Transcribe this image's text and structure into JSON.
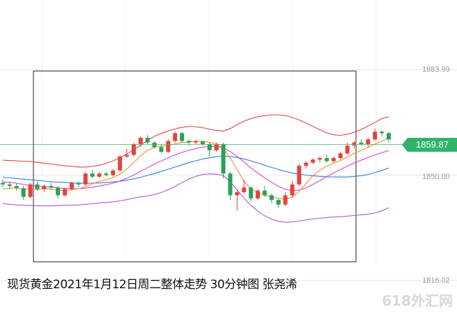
{
  "chart_data": {
    "type": "candlestick",
    "y_ticks": [
      "1883.99",
      "1850.00",
      "1816.02"
    ],
    "y_tick_values": [
      1883.99,
      1850.0,
      1816.02
    ],
    "current_price": "1859.87",
    "current_price_value": 1859.87,
    "ylim": [
      1816.02,
      1883.99
    ],
    "grid": true,
    "candles": [
      [
        1847.5,
        1848.5,
        1846.0,
        1847.0
      ],
      [
        1847.0,
        1848.0,
        1845.5,
        1846.5
      ],
      [
        1846.5,
        1847.5,
        1845.0,
        1845.8
      ],
      [
        1845.8,
        1846.5,
        1842.0,
        1843.0
      ],
      [
        1843.0,
        1847.5,
        1842.5,
        1847.0
      ],
      [
        1847.0,
        1848.0,
        1845.0,
        1845.5
      ],
      [
        1845.5,
        1847.0,
        1844.5,
        1846.5
      ],
      [
        1846.5,
        1847.5,
        1845.5,
        1846.0
      ],
      [
        1846.0,
        1846.5,
        1842.5,
        1843.5
      ],
      [
        1843.5,
        1846.0,
        1843.0,
        1845.5
      ],
      [
        1845.5,
        1848.0,
        1845.0,
        1847.5
      ],
      [
        1847.5,
        1848.0,
        1846.0,
        1847.0
      ],
      [
        1847.0,
        1851.0,
        1846.5,
        1850.5
      ],
      [
        1850.5,
        1851.5,
        1849.0,
        1849.5
      ],
      [
        1849.5,
        1851.0,
        1849.0,
        1850.5
      ],
      [
        1850.5,
        1851.0,
        1849.5,
        1850.0
      ],
      [
        1850.0,
        1852.0,
        1849.5,
        1851.5
      ],
      [
        1851.5,
        1856.5,
        1851.0,
        1856.0
      ],
      [
        1856.0,
        1858.5,
        1855.5,
        1856.5
      ],
      [
        1856.5,
        1860.5,
        1856.0,
        1860.0
      ],
      [
        1860.0,
        1862.5,
        1859.0,
        1862.0
      ],
      [
        1862.0,
        1863.0,
        1860.0,
        1860.5
      ],
      [
        1860.5,
        1861.0,
        1858.5,
        1859.0
      ],
      [
        1859.0,
        1860.0,
        1857.0,
        1857.5
      ],
      [
        1857.5,
        1861.5,
        1857.0,
        1861.0
      ],
      [
        1861.0,
        1864.0,
        1860.5,
        1863.5
      ],
      [
        1863.5,
        1864.0,
        1860.5,
        1861.0
      ],
      [
        1861.0,
        1861.5,
        1859.5,
        1860.5
      ],
      [
        1860.5,
        1861.5,
        1860.0,
        1860.8
      ],
      [
        1860.8,
        1861.0,
        1859.5,
        1860.0
      ],
      [
        1860.0,
        1860.5,
        1856.0,
        1858.0
      ],
      [
        1858.0,
        1860.5,
        1857.5,
        1860.0
      ],
      [
        1860.0,
        1860.5,
        1849.0,
        1850.5
      ],
      [
        1850.5,
        1851.0,
        1842.0,
        1843.5
      ],
      [
        1843.5,
        1845.5,
        1838.5,
        1844.5
      ],
      [
        1844.5,
        1848.5,
        1844.0,
        1846.0
      ],
      [
        1846.0,
        1846.5,
        1841.5,
        1842.5
      ],
      [
        1842.5,
        1845.5,
        1842.0,
        1845.0
      ],
      [
        1845.0,
        1846.5,
        1843.0,
        1843.5
      ],
      [
        1843.5,
        1844.0,
        1841.0,
        1842.0
      ],
      [
        1842.0,
        1842.5,
        1839.5,
        1840.5
      ],
      [
        1840.5,
        1844.5,
        1840.0,
        1843.5
      ],
      [
        1843.5,
        1848.0,
        1843.0,
        1847.0
      ],
      [
        1847.0,
        1853.5,
        1846.5,
        1853.0
      ],
      [
        1853.0,
        1854.5,
        1852.0,
        1854.0
      ],
      [
        1854.0,
        1855.5,
        1853.5,
        1855.0
      ],
      [
        1855.0,
        1856.0,
        1854.0,
        1855.5
      ],
      [
        1855.5,
        1856.5,
        1854.0,
        1854.5
      ],
      [
        1854.5,
        1856.0,
        1854.0,
        1855.5
      ],
      [
        1855.5,
        1857.5,
        1855.0,
        1857.0
      ],
      [
        1857.0,
        1860.5,
        1856.5,
        1859.5
      ],
      [
        1859.5,
        1861.0,
        1858.5,
        1860.5
      ],
      [
        1860.5,
        1861.5,
        1859.5,
        1860.0
      ],
      [
        1860.0,
        1862.0,
        1859.0,
        1861.5
      ],
      [
        1861.5,
        1865.0,
        1861.0,
        1864.0
      ],
      [
        1864.0,
        1864.5,
        1862.5,
        1863.5
      ],
      [
        1863.5,
        1864.0,
        1860.5,
        1861.5
      ]
    ],
    "ma_orange": [
      1845.5,
      1845.7,
      1845.9,
      1845.5,
      1845.3,
      1845.4,
      1845.6,
      1845.5,
      1845.2,
      1845.0,
      1845.3,
      1845.6,
      1846.3,
      1847.2,
      1848.0,
      1848.5,
      1849.2,
      1850.3,
      1852.0,
      1854.0,
      1856.3,
      1858.0,
      1859.0,
      1859.3,
      1859.6,
      1860.1,
      1860.5,
      1860.7,
      1860.9,
      1861.0,
      1860.5,
      1860.2,
      1858.5,
      1855.5,
      1851.8,
      1848.0,
      1845.5,
      1844.5,
      1843.6,
      1843.0,
      1842.5,
      1842.2,
      1842.9,
      1844.8,
      1847.3,
      1849.8,
      1851.6,
      1852.9,
      1853.9,
      1854.7,
      1855.8,
      1857.0,
      1858.0,
      1859.0,
      1860.0,
      1861.0,
      1861.9
    ],
    "ma_magenta": [
      1847.8,
      1847.6,
      1847.4,
      1847.0,
      1846.7,
      1846.5,
      1846.3,
      1846.1,
      1845.9,
      1845.7,
      1845.6,
      1845.6,
      1845.8,
      1846.1,
      1846.5,
      1846.9,
      1847.4,
      1848.1,
      1849.0,
      1850.0,
      1851.2,
      1852.4,
      1853.6,
      1854.6,
      1855.5,
      1856.5,
      1857.3,
      1858.0,
      1858.6,
      1859.0,
      1859.2,
      1859.3,
      1858.8,
      1857.6,
      1856.0,
      1854.2,
      1852.3,
      1850.7,
      1849.1,
      1847.7,
      1846.4,
      1845.4,
      1845.0,
      1845.2,
      1845.9,
      1847.0,
      1848.2,
      1849.5,
      1850.7,
      1851.8,
      1852.9,
      1853.9,
      1854.8,
      1855.7,
      1856.5,
      1857.2,
      1857.9
    ],
    "ma_blue": [
      1849.3,
      1849.1,
      1848.9,
      1848.7,
      1848.5,
      1848.3,
      1848.1,
      1847.9,
      1847.7,
      1847.6,
      1847.5,
      1847.4,
      1847.4,
      1847.4,
      1847.5,
      1847.6,
      1847.8,
      1848.0,
      1848.4,
      1848.8,
      1849.3,
      1849.9,
      1850.5,
      1851.2,
      1851.9,
      1852.6,
      1853.3,
      1854.0,
      1854.6,
      1855.2,
      1855.6,
      1856.0,
      1856.1,
      1856.0,
      1855.7,
      1855.2,
      1854.6,
      1853.9,
      1853.2,
      1852.5,
      1851.8,
      1851.2,
      1850.7,
      1850.3,
      1850.0,
      1849.8,
      1849.6,
      1849.5,
      1849.4,
      1849.4,
      1849.4,
      1849.6,
      1849.8,
      1850.2,
      1850.8,
      1851.5,
      1852.3
    ],
    "bb_upper": [
      1854.8,
      1854.7,
      1854.6,
      1854.5,
      1854.4,
      1854.1,
      1853.8,
      1853.6,
      1853.3,
      1853.0,
      1852.8,
      1852.6,
      1852.6,
      1852.8,
      1853.2,
      1853.8,
      1854.6,
      1855.6,
      1856.8,
      1858.1,
      1859.6,
      1861.2,
      1862.5,
      1863.4,
      1864.2,
      1864.9,
      1865.4,
      1865.7,
      1865.6,
      1865.3,
      1864.8,
      1864.4,
      1864.2,
      1865.0,
      1866.3,
      1867.4,
      1868.2,
      1868.8,
      1869.2,
      1869.4,
      1869.4,
      1869.2,
      1868.6,
      1867.8,
      1866.8,
      1865.7,
      1864.6,
      1863.6,
      1863.0,
      1862.8,
      1863.2,
      1863.8,
      1864.7,
      1865.8,
      1867.0,
      1868.2,
      1868.8
    ],
    "bb_lower": [
      1840.8,
      1840.6,
      1840.4,
      1840.3,
      1840.2,
      1840.1,
      1840.1,
      1840.1,
      1840.2,
      1840.3,
      1840.3,
      1840.4,
      1840.6,
      1840.8,
      1841.0,
      1841.2,
      1841.4,
      1841.7,
      1842.1,
      1842.6,
      1843.0,
      1843.3,
      1843.7,
      1844.4,
      1845.3,
      1846.4,
      1847.6,
      1848.7,
      1849.6,
      1850.2,
      1850.4,
      1850.3,
      1849.8,
      1847.9,
      1845.2,
      1842.6,
      1840.3,
      1838.4,
      1836.9,
      1835.8,
      1835.1,
      1834.8,
      1834.9,
      1835.2,
      1835.6,
      1835.9,
      1836.1,
      1836.3,
      1836.5,
      1836.6,
      1836.8,
      1837.0,
      1837.2,
      1837.4,
      1837.8,
      1838.5,
      1839.5
    ]
  },
  "caption": "现货黄金2021年1月12日周二整体走势 30分钟图 张尧浠",
  "watermark": "618外汇网",
  "colors": {
    "up": "#e0453e",
    "down": "#2aa158",
    "ma_orange": "#f28c28",
    "ma_magenta": "#e040d8",
    "ma_blue": "#2f7fd8",
    "bb_upper": "#e0453e",
    "bb_lower": "#a65bd8",
    "price_line": "#3ab36b"
  }
}
